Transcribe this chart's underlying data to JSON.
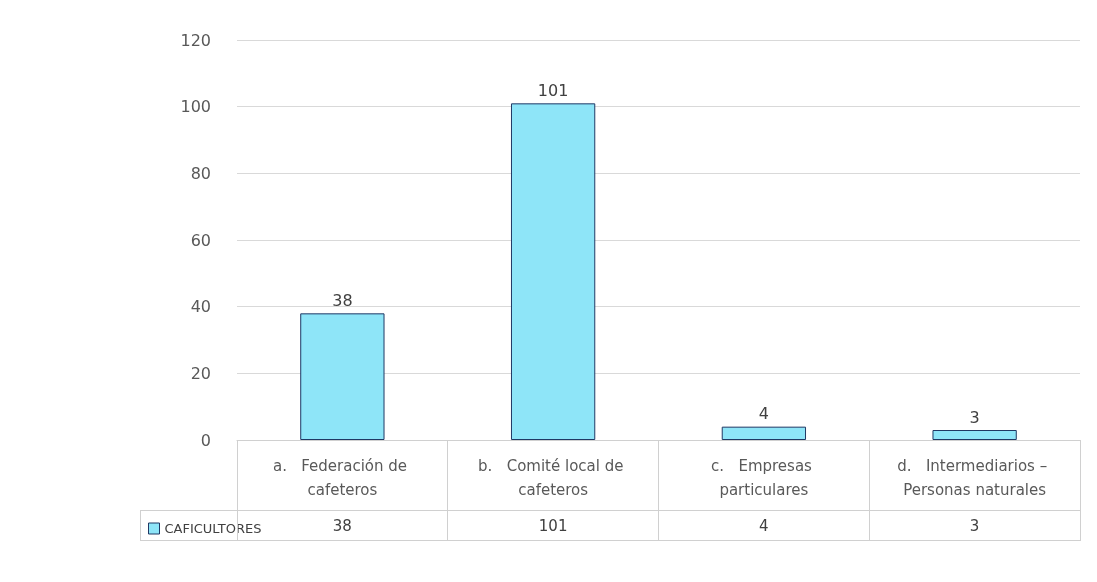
{
  "chart_data": {
    "type": "bar",
    "categories": [
      "a.   Federación de cafeteros",
      "b.   Comité local de cafeteros",
      "c.   Empresas particulares",
      "d.   Intermediarios – Personas naturales"
    ],
    "series": [
      {
        "name": "CAFICULTORES",
        "color": "#8ee5f8",
        "values": [
          38,
          101,
          4,
          3
        ],
        "value_labels": [
          "38",
          "101",
          "4",
          "3"
        ]
      }
    ],
    "ylim": [
      0,
      120
    ],
    "yticks": [
      0,
      20,
      40,
      60,
      80,
      100,
      120
    ],
    "grid": "y",
    "legend": "bottom left",
    "data_labels": true
  }
}
